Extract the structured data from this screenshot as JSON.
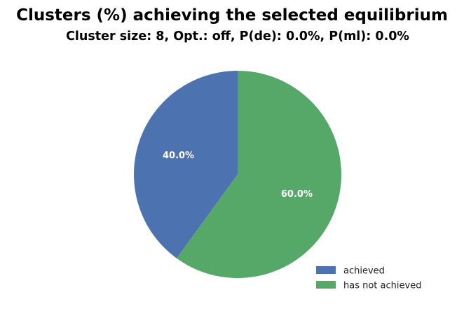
{
  "chart_data": {
    "type": "pie",
    "title": "Clusters (%) achieving the selected equilibrium",
    "subtitle": "Cluster size: 8, Opt.: off, P(de): 0.0%, P(ml): 0.0%",
    "slices": [
      {
        "label": "achieved",
        "value": 40.0,
        "display": "40.0%",
        "color": "#4c72b0"
      },
      {
        "label": "has not achieved",
        "value": 60.0,
        "display": "60.0%",
        "color": "#55a868"
      }
    ],
    "start_angle_deg": 90,
    "direction": "counterclockwise",
    "legend_position": "lower-right"
  }
}
